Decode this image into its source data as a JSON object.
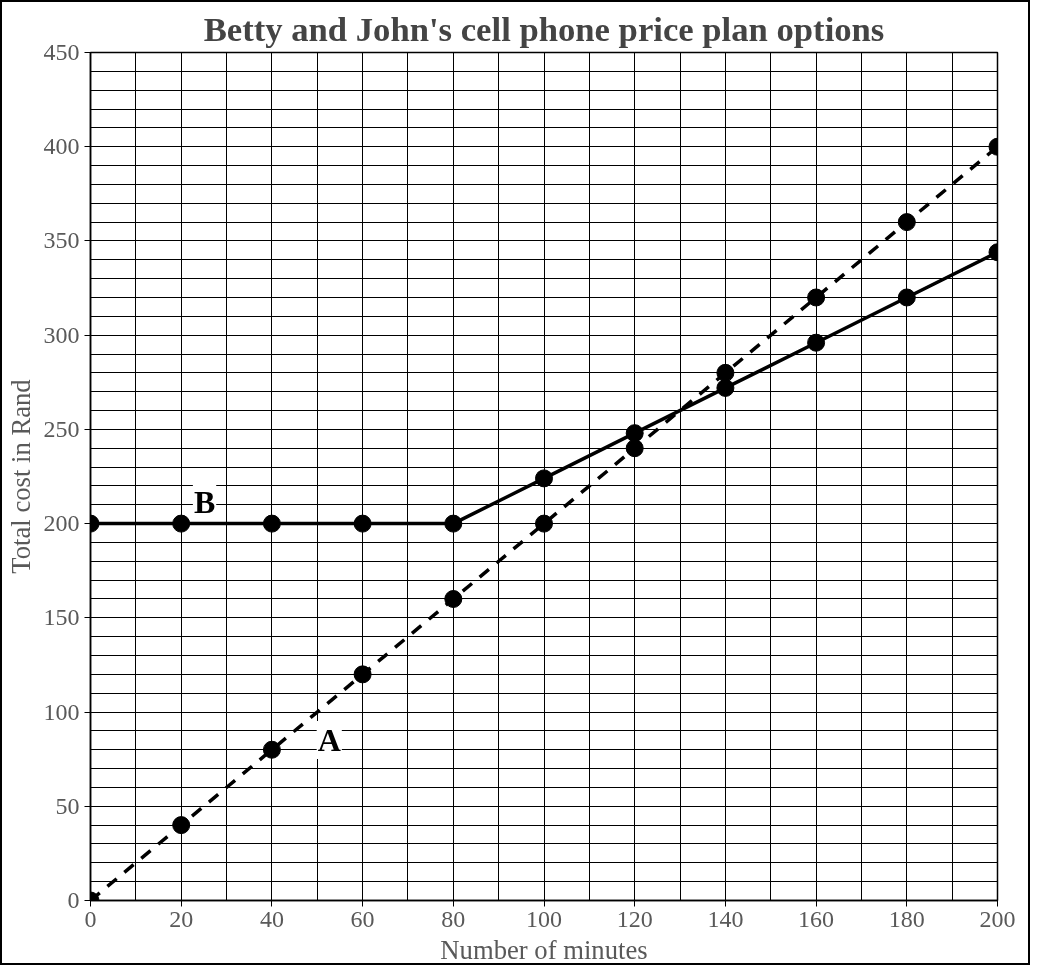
{
  "chart_data": {
    "type": "line",
    "title": "Betty and John's cell phone price plan options",
    "xlabel": "Number of minutes",
    "ylabel": "Total cost in Rand",
    "x": [
      0,
      20,
      40,
      60,
      80,
      100,
      120,
      140,
      160,
      180,
      200
    ],
    "series": [
      {
        "name": "A",
        "color": "#000000",
        "line_style": "dashed",
        "values": [
          0,
          40,
          80,
          120,
          160,
          200,
          240,
          280,
          320,
          360,
          400
        ]
      },
      {
        "name": "B",
        "color": "#000000",
        "line_style": "solid",
        "values": [
          200,
          200,
          200,
          200,
          200,
          224,
          248,
          272,
          296,
          320,
          344
        ]
      }
    ],
    "xlim": [
      0,
      200
    ],
    "ylim": [
      0,
      450
    ],
    "xticks": [
      0,
      {
        "value": 10,
        "label": null
      },
      20,
      {
        "value": 30,
        "label": null
      },
      40,
      {
        "value": 50,
        "label": null
      },
      60,
      {
        "value": 70,
        "label": null
      },
      80,
      {
        "value": 90,
        "label": null
      },
      100,
      {
        "value": 110,
        "label": null
      },
      120,
      {
        "value": 130,
        "label": null
      },
      140,
      {
        "value": 150,
        "label": null
      },
      160,
      {
        "value": 170,
        "label": null
      },
      180,
      {
        "value": 190,
        "label": null
      },
      200
    ],
    "yticks": [
      0,
      {
        "value": 10,
        "label": null
      },
      {
        "value": 20,
        "label": null
      },
      {
        "value": 30,
        "label": null
      },
      {
        "value": 40,
        "label": null
      },
      50,
      {
        "value": 60,
        "label": null
      },
      {
        "value": 70,
        "label": null
      },
      {
        "value": 80,
        "label": null
      },
      {
        "value": 90,
        "label": null
      },
      100,
      {
        "value": 110,
        "label": null
      },
      {
        "value": 120,
        "label": null
      },
      {
        "value": 130,
        "label": null
      },
      {
        "value": 140,
        "label": null
      },
      150,
      {
        "value": 160,
        "label": null
      },
      {
        "value": 170,
        "label": null
      },
      {
        "value": 180,
        "label": null
      },
      {
        "value": 190,
        "label": null
      },
      200,
      {
        "value": 210,
        "label": null
      },
      {
        "value": 220,
        "label": null
      },
      {
        "value": 230,
        "label": null
      },
      {
        "value": 240,
        "label": null
      },
      250,
      {
        "value": 260,
        "label": null
      },
      {
        "value": 270,
        "label": null
      },
      {
        "value": 280,
        "label": null
      },
      {
        "value": 290,
        "label": null
      },
      300,
      {
        "value": 310,
        "label": null
      },
      {
        "value": 320,
        "label": null
      },
      {
        "value": 330,
        "label": null
      },
      {
        "value": 340,
        "label": null
      },
      350,
      {
        "value": 360,
        "label": null
      },
      {
        "value": 370,
        "label": null
      },
      {
        "value": 380,
        "label": null
      },
      {
        "value": 390,
        "label": null
      },
      400,
      {
        "value": 410,
        "label": null
      },
      {
        "value": 420,
        "label": null
      },
      {
        "value": 430,
        "label": null
      },
      {
        "value": 440,
        "label": null
      },
      450
    ],
    "grid": true,
    "marker": "circle"
  }
}
